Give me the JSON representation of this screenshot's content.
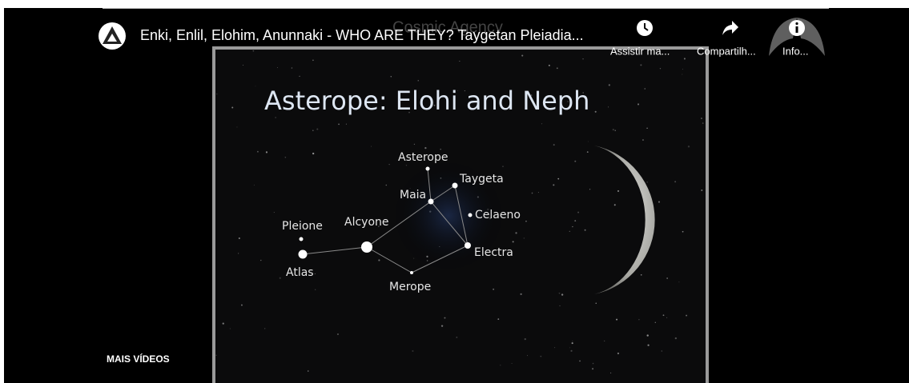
{
  "header": {
    "title": "Enki, Enlil, Elohim, Anunnaki - WHO ARE THEY? Taygetan Pleiadia...",
    "watermark": "Cosmic Agency"
  },
  "actions": [
    {
      "label": "Assistir ma..."
    },
    {
      "label": "Compartilh..."
    },
    {
      "label": "Info..."
    }
  ],
  "slide": {
    "title": "Asterope: Elohi and Neph",
    "stars": [
      {
        "label": "Asterope"
      },
      {
        "label": "Taygeta"
      },
      {
        "label": "Maia"
      },
      {
        "label": "Celaeno"
      },
      {
        "label": "Pleione"
      },
      {
        "label": "Alcyone"
      },
      {
        "label": "Atlas"
      },
      {
        "label": "Electra"
      },
      {
        "label": "Merope"
      }
    ]
  },
  "footer": {
    "more_videos": "MAIS VÍDEOS"
  }
}
